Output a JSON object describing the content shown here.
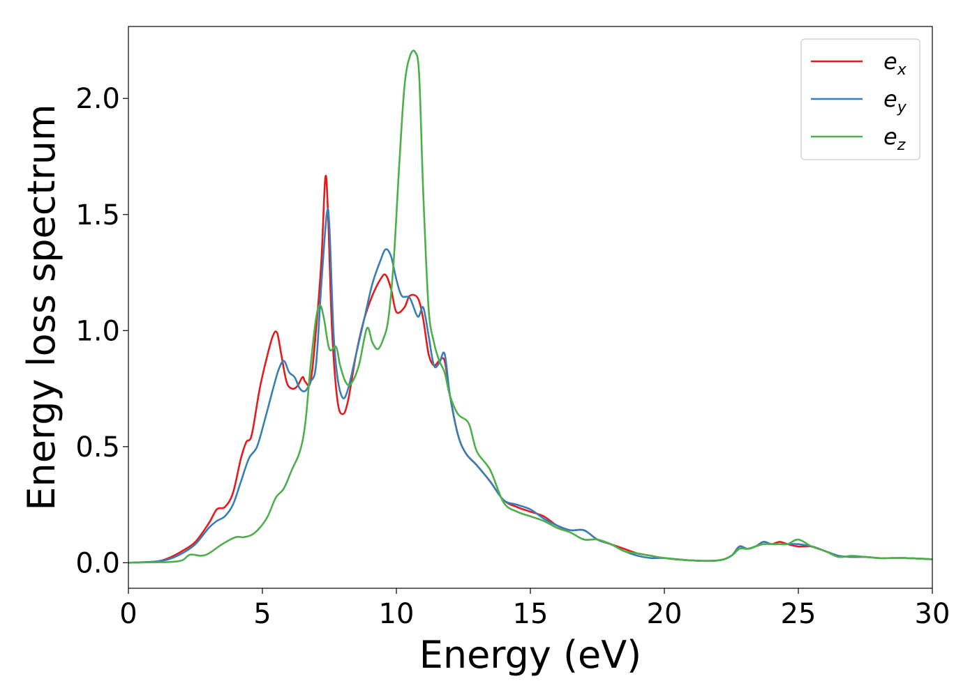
{
  "chart_data": {
    "type": "line",
    "title": "",
    "xlabel": "Energy (eV)",
    "ylabel": "Energy loss spectrum",
    "xlim": [
      0,
      30
    ],
    "ylim": [
      -0.11,
      2.31
    ],
    "xticks": [
      0,
      5,
      10,
      15,
      20,
      25,
      30
    ],
    "xtick_labels": [
      "0",
      "5",
      "10",
      "15",
      "20",
      "25",
      "30"
    ],
    "yticks": [
      0.0,
      0.5,
      1.0,
      1.5,
      2.0
    ],
    "ytick_labels": [
      "0.0",
      "0.5",
      "1.0",
      "1.5",
      "2.0"
    ],
    "grid": false,
    "legend_position": "top-right",
    "series": [
      {
        "name": "e_x",
        "legend_base": "e",
        "legend_sub": "x",
        "color": "#e41a1c",
        "x": [
          0,
          1,
          1.5,
          2,
          2.5,
          3,
          3.3,
          3.6,
          3.9,
          4.2,
          4.4,
          4.6,
          4.9,
          5.2,
          5.4,
          5.55,
          5.7,
          5.9,
          6.1,
          6.3,
          6.5,
          6.6,
          6.8,
          7.0,
          7.2,
          7.35,
          7.45,
          7.6,
          7.8,
          8.0,
          8.2,
          8.5,
          8.8,
          9.1,
          9.4,
          9.6,
          9.8,
          10.0,
          10.3,
          10.5,
          10.8,
          11.0,
          11.2,
          11.4,
          11.6,
          11.8,
          12.0,
          12.3,
          12.6,
          13.0,
          13.5,
          14.0,
          14.5,
          15.0,
          15.5,
          16.0,
          16.5,
          17.0,
          17.5,
          18.0,
          18.5,
          19.0,
          19.5,
          20.0,
          21.0,
          22.0,
          22.5,
          22.8,
          23.1,
          23.4,
          23.7,
          24.0,
          24.3,
          24.6,
          25.0,
          25.5,
          26.0,
          26.5,
          27.0,
          27.5,
          28.0,
          28.5,
          29.0,
          30.0
        ],
        "y": [
          0.0,
          0.005,
          0.02,
          0.05,
          0.09,
          0.17,
          0.23,
          0.24,
          0.3,
          0.45,
          0.52,
          0.55,
          0.75,
          0.9,
          0.98,
          0.99,
          0.9,
          0.78,
          0.75,
          0.76,
          0.8,
          0.78,
          0.78,
          1.0,
          1.3,
          1.66,
          1.5,
          1.0,
          0.7,
          0.64,
          0.7,
          0.9,
          1.05,
          1.15,
          1.22,
          1.24,
          1.18,
          1.08,
          1.1,
          1.15,
          1.14,
          1.05,
          0.9,
          0.85,
          0.87,
          0.87,
          0.72,
          0.55,
          0.47,
          0.42,
          0.35,
          0.27,
          0.24,
          0.22,
          0.2,
          0.16,
          0.14,
          0.14,
          0.1,
          0.08,
          0.06,
          0.04,
          0.03,
          0.02,
          0.01,
          0.01,
          0.03,
          0.07,
          0.06,
          0.07,
          0.09,
          0.08,
          0.09,
          0.08,
          0.07,
          0.07,
          0.05,
          0.03,
          0.025,
          0.025,
          0.02,
          0.02,
          0.02,
          0.015
        ]
      },
      {
        "name": "e_y",
        "legend_base": "e",
        "legend_sub": "y",
        "color": "#377eb8",
        "x": [
          0,
          1,
          1.5,
          2,
          2.5,
          3,
          3.3,
          3.6,
          3.9,
          4.2,
          4.5,
          4.8,
          5.1,
          5.4,
          5.6,
          5.8,
          6.0,
          6.2,
          6.4,
          6.6,
          6.8,
          7.0,
          7.2,
          7.4,
          7.5,
          7.65,
          7.8,
          8.0,
          8.2,
          8.5,
          8.8,
          9.1,
          9.4,
          9.6,
          9.8,
          10.0,
          10.2,
          10.5,
          10.8,
          11.0,
          11.2,
          11.4,
          11.6,
          11.8,
          12.0,
          12.3,
          12.6,
          13.0,
          13.5,
          14.0,
          14.5,
          15.0,
          15.5,
          16.0,
          16.5,
          17.0,
          17.5,
          18.0,
          18.5,
          19.0,
          19.5,
          20.0,
          21.0,
          22.0,
          22.5,
          22.8,
          23.1,
          23.4,
          23.7,
          24.0,
          24.3,
          24.6,
          25.0,
          25.5,
          26.0,
          26.5,
          27.0,
          27.5,
          28.0,
          28.5,
          29.0,
          30.0
        ],
        "y": [
          0.0,
          0.005,
          0.015,
          0.04,
          0.08,
          0.15,
          0.18,
          0.2,
          0.25,
          0.35,
          0.45,
          0.5,
          0.62,
          0.75,
          0.83,
          0.87,
          0.82,
          0.8,
          0.75,
          0.74,
          0.78,
          0.85,
          1.2,
          1.5,
          1.45,
          1.0,
          0.8,
          0.71,
          0.75,
          0.9,
          1.05,
          1.2,
          1.3,
          1.35,
          1.32,
          1.22,
          1.15,
          1.14,
          1.06,
          1.1,
          0.98,
          0.85,
          0.86,
          0.9,
          0.72,
          0.55,
          0.47,
          0.42,
          0.35,
          0.27,
          0.25,
          0.23,
          0.19,
          0.16,
          0.14,
          0.14,
          0.1,
          0.08,
          0.05,
          0.03,
          0.02,
          0.02,
          0.01,
          0.01,
          0.03,
          0.07,
          0.06,
          0.07,
          0.09,
          0.08,
          0.08,
          0.08,
          0.08,
          0.07,
          0.05,
          0.03,
          0.025,
          0.025,
          0.02,
          0.02,
          0.02,
          0.015
        ]
      },
      {
        "name": "e_z",
        "legend_base": "e",
        "legend_sub": "z",
        "color": "#4daf4a",
        "x": [
          0,
          1,
          1.5,
          2,
          2.3,
          2.7,
          3.0,
          3.5,
          4.0,
          4.3,
          4.6,
          4.9,
          5.2,
          5.5,
          5.8,
          6.1,
          6.4,
          6.6,
          6.8,
          7.0,
          7.15,
          7.3,
          7.5,
          7.75,
          7.9,
          8.1,
          8.3,
          8.6,
          8.9,
          9.1,
          9.3,
          9.5,
          9.7,
          9.9,
          10.1,
          10.3,
          10.5,
          10.7,
          10.85,
          11.0,
          11.2,
          11.4,
          11.6,
          11.8,
          12.0,
          12.3,
          12.7,
          13.0,
          13.5,
          14.0,
          14.5,
          15.0,
          15.5,
          16.0,
          16.5,
          17.0,
          17.5,
          18.0,
          18.5,
          19.0,
          19.5,
          20.0,
          21.0,
          22.0,
          22.5,
          22.8,
          23.1,
          23.4,
          23.7,
          24.0,
          24.3,
          24.6,
          25.0,
          25.5,
          26.0,
          26.5,
          27.0,
          27.5,
          28.0,
          28.5,
          29.0,
          30.0
        ],
        "y": [
          0.0,
          0.002,
          0.003,
          0.01,
          0.035,
          0.03,
          0.04,
          0.08,
          0.11,
          0.11,
          0.12,
          0.15,
          0.2,
          0.28,
          0.32,
          0.4,
          0.48,
          0.6,
          0.85,
          1.05,
          1.11,
          1.05,
          0.92,
          0.93,
          0.85,
          0.78,
          0.77,
          0.85,
          1.01,
          0.95,
          0.92,
          0.96,
          1.05,
          1.3,
          1.7,
          2.05,
          2.18,
          2.2,
          2.1,
          1.6,
          1.1,
          0.95,
          0.87,
          0.82,
          0.72,
          0.64,
          0.6,
          0.48,
          0.4,
          0.26,
          0.22,
          0.2,
          0.18,
          0.15,
          0.13,
          0.1,
          0.1,
          0.08,
          0.05,
          0.04,
          0.03,
          0.02,
          0.01,
          0.01,
          0.03,
          0.06,
          0.06,
          0.07,
          0.08,
          0.08,
          0.08,
          0.08,
          0.1,
          0.07,
          0.05,
          0.025,
          0.03,
          0.025,
          0.02,
          0.02,
          0.02,
          0.015
        ]
      }
    ]
  }
}
